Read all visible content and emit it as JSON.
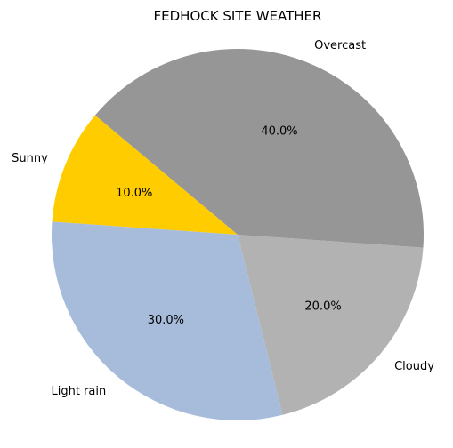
{
  "chart_data": {
    "type": "pie",
    "title": "FEDHOCK SITE WEATHER",
    "start_angle_deg": 140,
    "direction": "counterclockwise",
    "slices": [
      {
        "label": "Sunny",
        "value": 10.0,
        "percent_label": "10.0%",
        "color": "#FFCC00"
      },
      {
        "label": "Light rain",
        "value": 30.0,
        "percent_label": "30.0%",
        "color": "#A7BCDB"
      },
      {
        "label": "Cloudy",
        "value": 20.0,
        "percent_label": "20.0%",
        "color": "#B2B2B2"
      },
      {
        "label": "Overcast",
        "value": 40.0,
        "percent_label": "40.0%",
        "color": "#969696"
      }
    ]
  }
}
